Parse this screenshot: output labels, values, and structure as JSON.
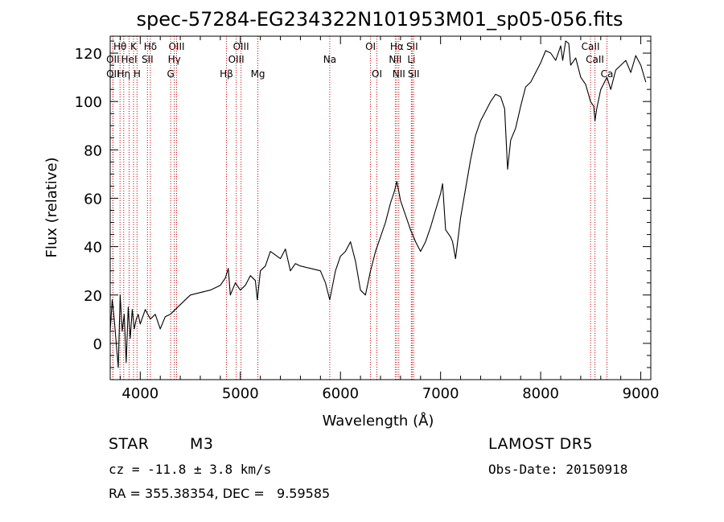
{
  "chart_data": {
    "type": "line",
    "title": "spec-57284-EG234322N101953M01_sp05-056.fits",
    "xlabel": "Wavelength (Å)",
    "ylabel": "Flux (relative)",
    "xlim": [
      3700,
      9100
    ],
    "ylim": [
      -15,
      127
    ],
    "x_ticks": [
      4000,
      5000,
      6000,
      7000,
      8000,
      9000
    ],
    "y_ticks": [
      0,
      20,
      40,
      60,
      80,
      100,
      120
    ],
    "grid": false,
    "series": [
      {
        "x": [
          3700,
          3720,
          3740,
          3760,
          3780,
          3800,
          3820,
          3840,
          3860,
          3880,
          3900,
          3920,
          3940,
          3960,
          3980,
          4000,
          4050,
          4100,
          4150,
          4200,
          4250,
          4300,
          4350,
          4400,
          4450,
          4500,
          4600,
          4700,
          4800,
          4850,
          4880,
          4900,
          4950,
          5000,
          5050,
          5100,
          5150,
          5170,
          5200,
          5250,
          5300,
          5400,
          5450,
          5500,
          5550,
          5600,
          5700,
          5800,
          5850,
          5893,
          5950,
          6000,
          6050,
          6100,
          6150,
          6200,
          6250,
          6300,
          6350,
          6400,
          6450,
          6500,
          6540,
          6563,
          6600,
          6650,
          6700,
          6750,
          6800,
          6850,
          6900,
          6950,
          7000,
          7020,
          7050,
          7100,
          7120,
          7150,
          7200,
          7250,
          7300,
          7350,
          7400,
          7450,
          7500,
          7550,
          7600,
          7640,
          7670,
          7700,
          7750,
          7800,
          7850,
          7900,
          7950,
          8000,
          8050,
          8100,
          8150,
          8200,
          8220,
          8250,
          8280,
          8300,
          8350,
          8400,
          8450,
          8498,
          8530,
          8542,
          8560,
          8600,
          8662,
          8700,
          8750,
          8800,
          8850,
          8900,
          8950,
          9000,
          9050
        ],
        "y": [
          5,
          18,
          10,
          0,
          -10,
          20,
          5,
          12,
          -8,
          15,
          2,
          14,
          6,
          10,
          12,
          8,
          14,
          10,
          12,
          6,
          11,
          12,
          14,
          16,
          18,
          20,
          21,
          22,
          24,
          27,
          31,
          20,
          25,
          22,
          24,
          28,
          26,
          18,
          30,
          32,
          38,
          35,
          39,
          30,
          33,
          32,
          31,
          30,
          25,
          18,
          30,
          36,
          38,
          42,
          34,
          22,
          20,
          30,
          38,
          44,
          50,
          58,
          63,
          67,
          59,
          53,
          47,
          42,
          38,
          42,
          48,
          55,
          62,
          66,
          47,
          44,
          42,
          35,
          52,
          64,
          76,
          86,
          92,
          96,
          100,
          103,
          102,
          97,
          72,
          84,
          89,
          98,
          106,
          108,
          112,
          116,
          121,
          120,
          117,
          123,
          117,
          125,
          124,
          115,
          118,
          110,
          107,
          100,
          98,
          92,
          97,
          105,
          110,
          105,
          113,
          115,
          117,
          112,
          119,
          115,
          108
        ]
      }
    ],
    "line_markers": [
      {
        "label": "Hθ",
        "x": 3798,
        "row": 1
      },
      {
        "label": "K",
        "x": 3933,
        "row": 1
      },
      {
        "label": "Hδ",
        "x": 4101,
        "row": 1
      },
      {
        "label": "OIII",
        "x": 4363,
        "row": 1
      },
      {
        "label": "OII",
        "x": 3727,
        "row": 2
      },
      {
        "label": "HeI",
        "x": 3889,
        "row": 2
      },
      {
        "label": "SII",
        "x": 4072,
        "row": 2
      },
      {
        "label": "Hγ",
        "x": 4340,
        "row": 2
      },
      {
        "label": "OII",
        "x": 3727,
        "row": 3
      },
      {
        "label": "Hη",
        "x": 3835,
        "row": 3
      },
      {
        "label": "H",
        "x": 3968,
        "row": 3
      },
      {
        "label": "G",
        "x": 4304,
        "row": 3
      },
      {
        "label": "OIII",
        "x": 5007,
        "row": 1
      },
      {
        "label": "OIII",
        "x": 4959,
        "row": 2
      },
      {
        "label": "Hβ",
        "x": 4861,
        "row": 3
      },
      {
        "label": "Mg",
        "x": 5175,
        "row": 3
      },
      {
        "label": "Na",
        "x": 5893,
        "row": 2
      },
      {
        "label": "OI",
        "x": 6300,
        "row": 1
      },
      {
        "label": "OI",
        "x": 6364,
        "row": 3
      },
      {
        "label": "Hα",
        "x": 6563,
        "row": 1
      },
      {
        "label": "SII",
        "x": 6716,
        "row": 1
      },
      {
        "label": "NII",
        "x": 6548,
        "row": 2
      },
      {
        "label": "Li",
        "x": 6708,
        "row": 2
      },
      {
        "label": "NII",
        "x": 6583,
        "row": 3
      },
      {
        "label": "SII",
        "x": 6731,
        "row": 3
      },
      {
        "label": "CaII",
        "x": 8498,
        "row": 1
      },
      {
        "label": "CaII",
        "x": 8542,
        "row": 2
      },
      {
        "label": "Ca",
        "x": 8662,
        "row": 3
      }
    ],
    "marker_color": "#c00000"
  },
  "info": {
    "class_label": "STAR",
    "subclass": "M3",
    "cz": "cz = -11.8 ± 3.8 km/s",
    "radec": "RA = 355.38354, DEC =   9.59585",
    "survey": "LAMOST DR5",
    "obs_date": "Obs-Date: 20150918"
  }
}
